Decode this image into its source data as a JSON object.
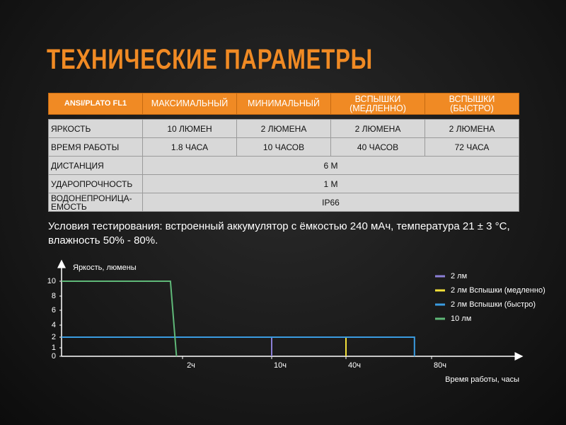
{
  "header": {
    "title": "ТЕХНИЧЕСКИЕ ПАРАМЕТРЫ"
  },
  "table": {
    "columns": [
      "ANSI/PLATO FL1",
      "МАКСИМАЛЬНЫЙ",
      "МИНИМАЛЬНЫЙ",
      "ВСПЫШКИ (МЕДЛЕННО)",
      "ВСПЫШКИ (БЫСТРО)"
    ],
    "rows": [
      [
        "ЯРКОСТЬ",
        "10 ЛЮМЕН",
        "2 ЛЮМЕНА",
        "2 ЛЮМЕНА",
        "2 ЛЮМЕНА"
      ],
      [
        "ВРЕМЯ РАБОТЫ",
        "1.8 ЧАСА",
        "10 ЧАСОВ",
        "40 ЧАСОВ",
        "72 ЧАСА"
      ],
      [
        "ДИСТАНЦИЯ",
        "6 М"
      ],
      [
        "УДАРОПРОЧНОСТЬ",
        "1 М"
      ],
      [
        "ВОДОНЕПРОНИЦА-ЕМОСТЬ",
        "IP66"
      ]
    ]
  },
  "note": "Условия тестирования: встроенный аккумулятор с ёмкостью 240 мАч, температура 21 ± 3 °C, влажность 50% - 80%.",
  "chart_data": {
    "type": "line",
    "y_label": "Яркость, люмены",
    "x_label": "Время работы, часы",
    "xlim": [
      0,
      120
    ],
    "ylim": [
      0,
      12
    ],
    "xticks": [
      {
        "value": 2,
        "label": "2ч"
      },
      {
        "value": 10,
        "label": "10ч"
      },
      {
        "value": 40,
        "label": "40ч"
      },
      {
        "value": 80,
        "label": "80ч"
      }
    ],
    "yticks": [
      0,
      1,
      2,
      4,
      6,
      8,
      10
    ],
    "series": [
      {
        "name": "2 лм",
        "color": "#8b7fd6",
        "x": [
          0,
          10,
          10
        ],
        "values": [
          2,
          2,
          0
        ]
      },
      {
        "name": "2 лм Вспышки (медленно)",
        "color": "#f2e03a",
        "x": [
          0,
          40,
          40
        ],
        "values": [
          2,
          2,
          0
        ]
      },
      {
        "name": "2 лм Вспышки (быстро)",
        "color": "#3a9be0",
        "x": [
          0,
          72,
          72
        ],
        "values": [
          2,
          2,
          0
        ]
      },
      {
        "name": "10 лм",
        "color": "#5fb878",
        "x": [
          0,
          1.8,
          1.9
        ],
        "values": [
          10,
          10,
          0
        ]
      }
    ]
  }
}
